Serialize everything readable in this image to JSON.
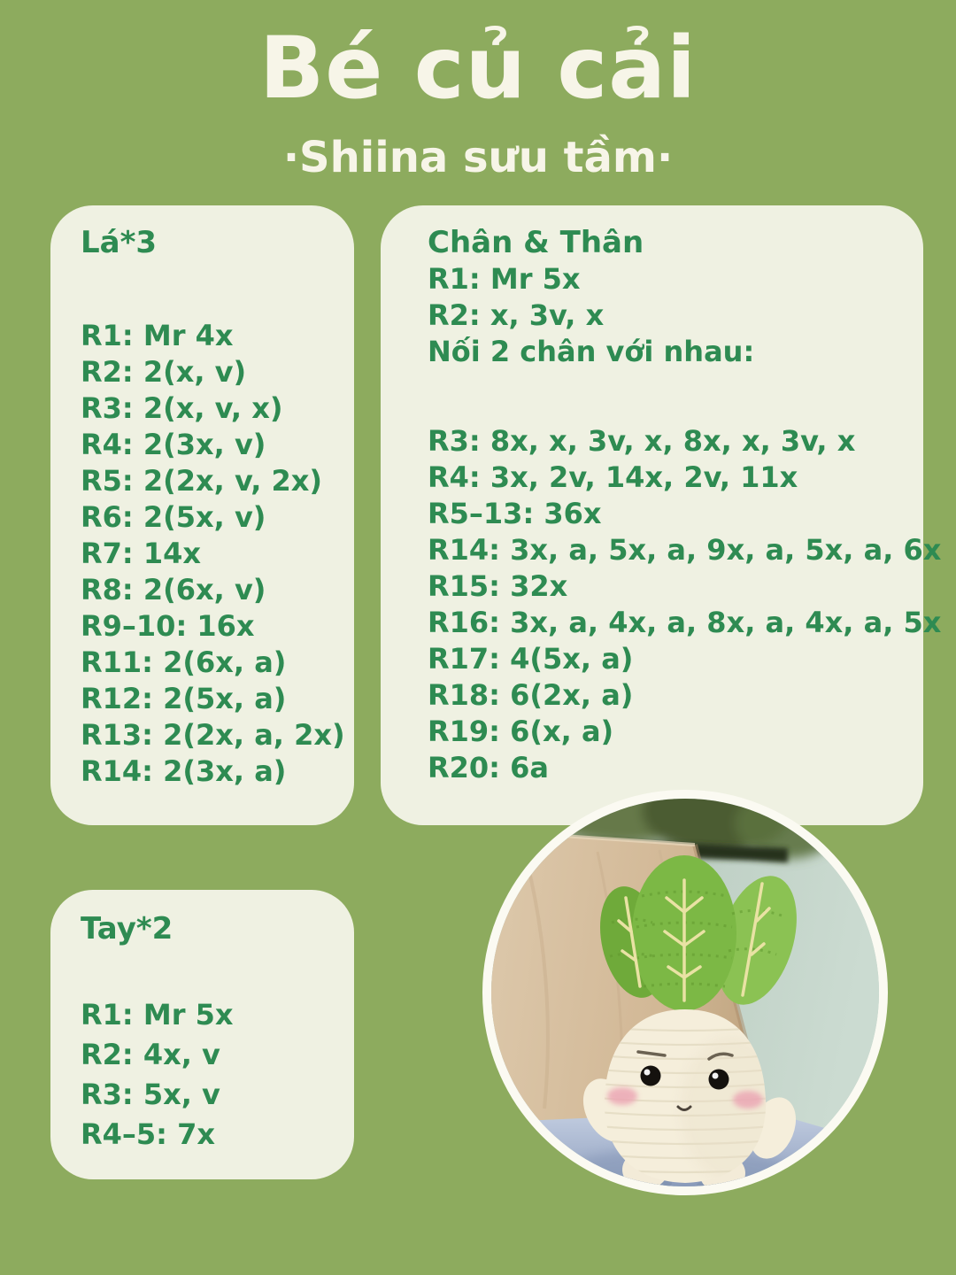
{
  "header": {
    "title": "Bé củ cải",
    "subtitle": "·Shiina sưu tầm·"
  },
  "sections": {
    "la": {
      "title": "Lá*3",
      "rows": [
        "R1: Mr 4x",
        "R2: 2(x, v)",
        "R3: 2(x, v, x)",
        "R4: 2(3x, v)",
        "R5: 2(2x, v, 2x)",
        "R6: 2(5x, v)",
        "R7: 14x",
        "R8: 2(6x, v)",
        "R9–10: 16x",
        "R11: 2(6x, a)",
        "R12: 2(5x, a)",
        "R13: 2(2x, a, 2x)",
        "R14: 2(3x, a)"
      ]
    },
    "chan_than": {
      "title": "Chân & Thân",
      "rows_top": [
        "R1: Mr 5x",
        "R2: x, 3v, x",
        "Nối 2 chân với nhau:"
      ],
      "rows_bottom": [
        "R3: 8x, x, 3v, x, 8x, x, 3v, x",
        "R4: 3x, 2v, 14x, 2v, 11x",
        "R5–13: 36x",
        "R14: 3x, a, 5x, a, 9x, a, 5x, a, 6x",
        "R15: 32x",
        "R16: 3x, a, 4x, a, 8x, a, 4x, a, 5x",
        "R17: 4(5x, a)",
        "R18: 6(2x, a)",
        "R19: 6(x, a)",
        "R20: 6a"
      ]
    },
    "tay": {
      "title": "Tay*2",
      "rows": [
        "R1: Mr 5x",
        "R2: 4x, v",
        "R3: 5x, v",
        "R4–5: 7x"
      ]
    }
  },
  "photo": {
    "description": "Crochet radish amigurumi with green leaf sprout, black bead eyes and pink blush cheeks, standing on a pale blue surface in front of a wooden board"
  },
  "colors": {
    "background": "#8dab5e",
    "card": "#eff1e2",
    "text": "#2e8b52",
    "title": "#f7f5e8",
    "photo_ring": "#fbfaf2"
  }
}
